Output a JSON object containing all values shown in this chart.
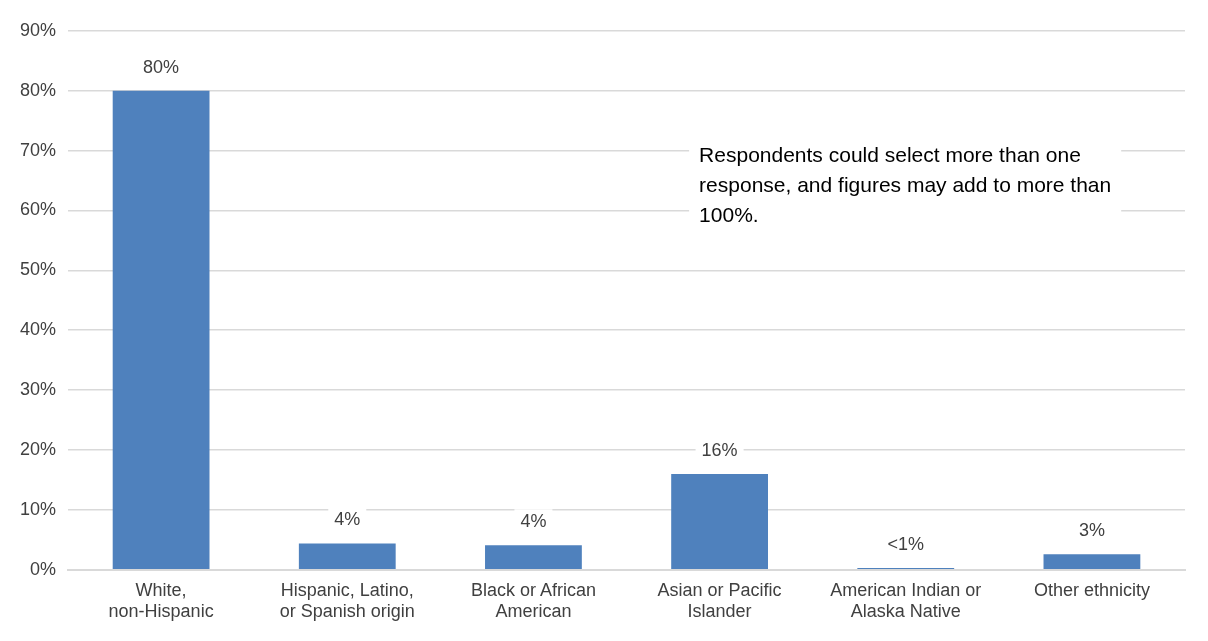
{
  "chart_data": {
    "type": "bar",
    "categories": [
      "White, non-Hispanic",
      "Hispanic, Latino, or Spanish origin",
      "Black or African American",
      "Asian or Pacific Islander",
      "American Indian or Alaska Native",
      "Other ethnicity"
    ],
    "values": [
      80,
      4.4,
      4.1,
      16,
      0.3,
      2.6
    ],
    "value_labels": [
      "80%",
      "4%",
      "4%",
      "16%",
      "<1%",
      "3%"
    ],
    "color": "#4f81bd",
    "ylim": [
      0,
      90
    ],
    "yticks": [
      {
        "value": 0,
        "label": "0%"
      },
      {
        "value": 10,
        "label": "10%"
      },
      {
        "value": 20,
        "label": "20%"
      },
      {
        "value": 30,
        "label": "30%"
      },
      {
        "value": 40,
        "label": "40%"
      },
      {
        "value": 50,
        "label": "50%"
      },
      {
        "value": 60,
        "label": "60%"
      },
      {
        "value": 70,
        "label": "70%"
      },
      {
        "value": 80,
        "label": "80%"
      },
      {
        "value": 90,
        "label": "90%"
      }
    ],
    "grid": "y",
    "legend": false,
    "annotations": [
      "Respondents could select more than one response, and figures may add to more than 100%."
    ]
  }
}
